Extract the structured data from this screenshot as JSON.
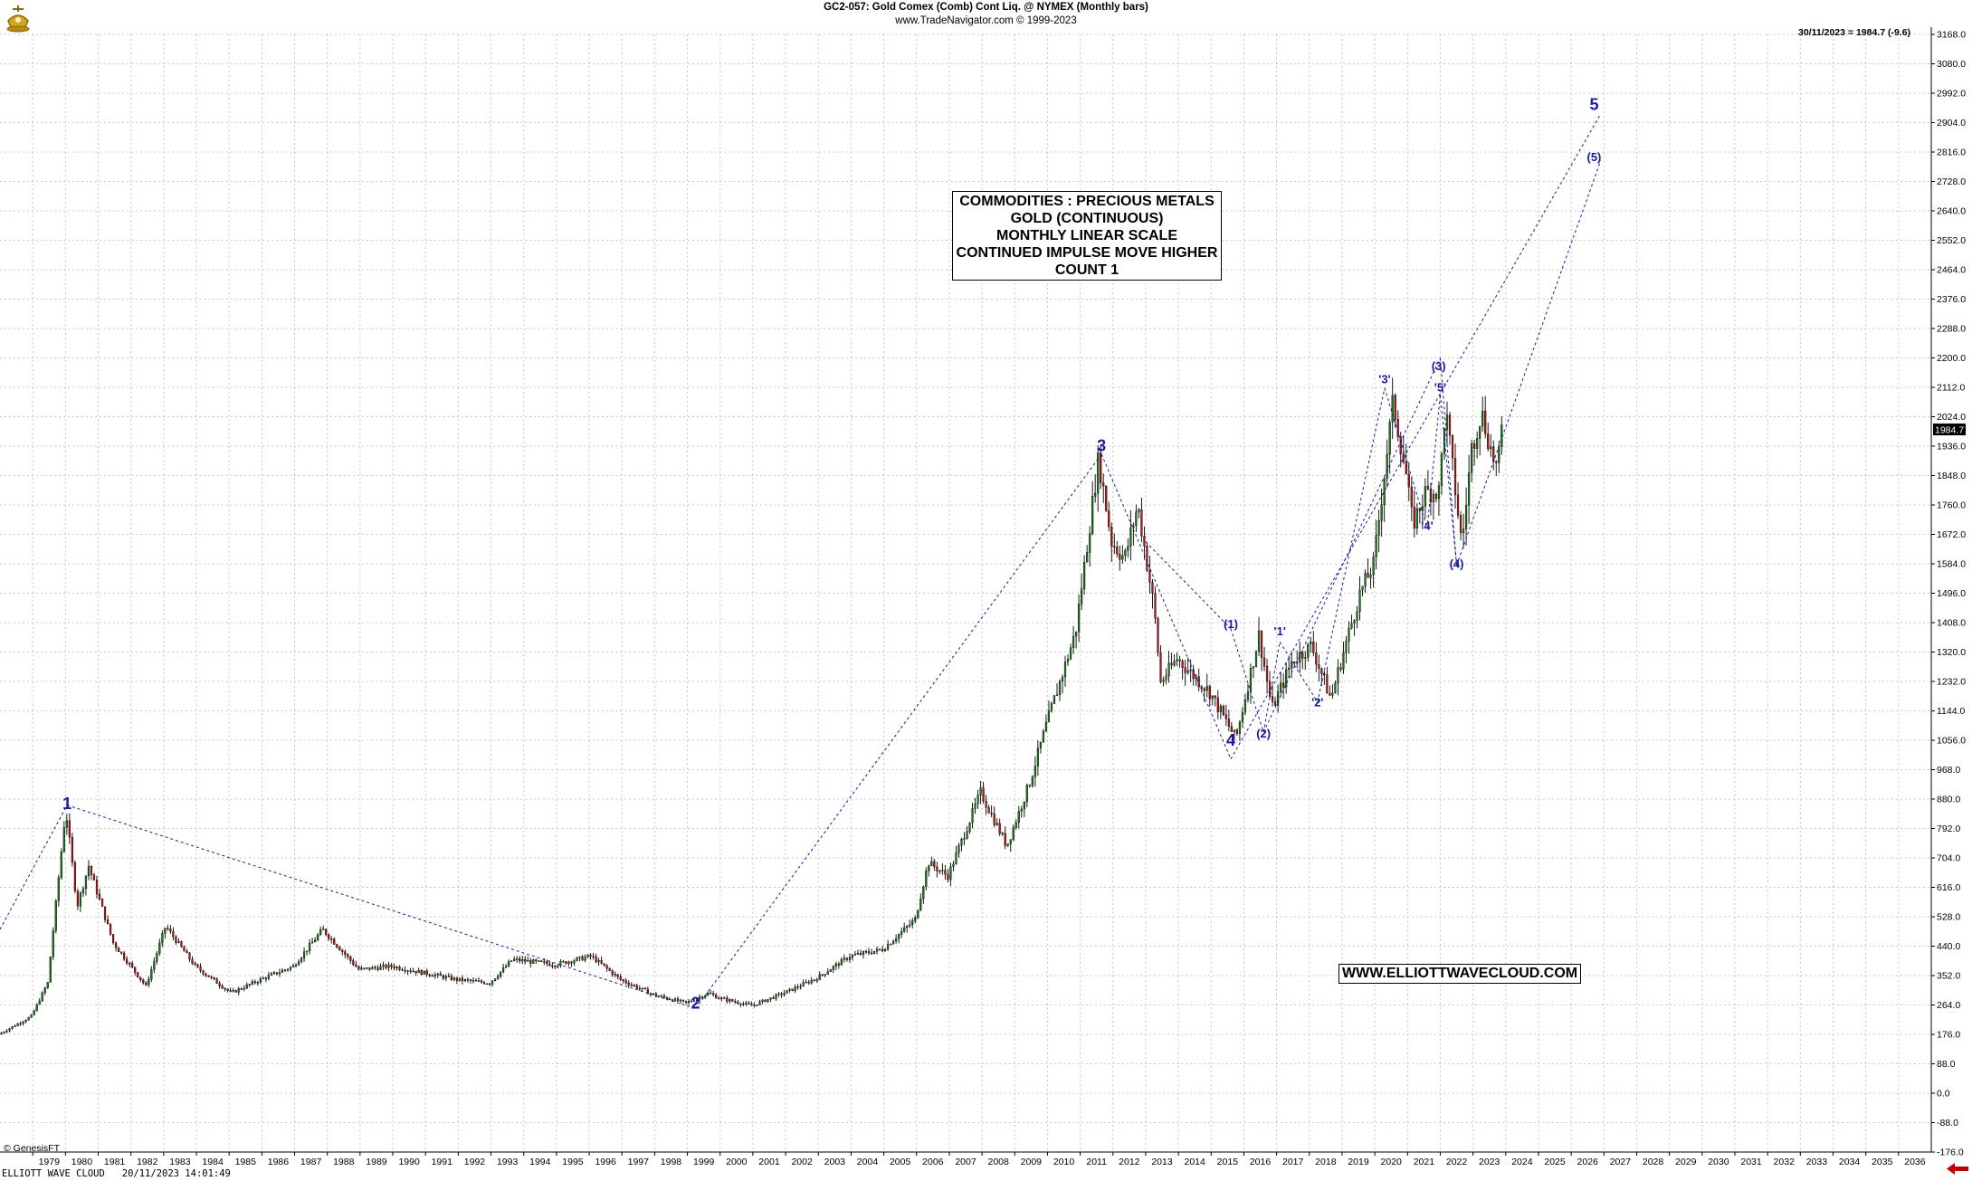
{
  "header": {
    "title": "GC2-057:  Gold Comex (Comb) Cont Liq. @ NYMEX  (Monthly bars)",
    "source": "www.TradeNavigator.com © 1999-2023",
    "last_info": "30/11/2023 = 1984.7 (-9.6)"
  },
  "info_box": {
    "lines": [
      "COMMODITIES : PRECIOUS METALS",
      "GOLD (CONTINUOUS)",
      "MONTHLY LINEAR SCALE",
      "CONTINUED IMPULSE MOVE HIGHER",
      "COUNT 1"
    ]
  },
  "url_box": "WWW.ELLIOTTWAVECLOUD.COM",
  "copyright": "© GenesisFT",
  "footer": {
    "app": "ELLIOTT WAVE CLOUD",
    "timestamp": "20/11/2023 14:01:49"
  },
  "colors": {
    "candle_up": "#1c7a1c",
    "candle_down": "#b81414",
    "wave_line": "#1a1a9c",
    "wave_label": "#1a1a9c",
    "grid": "#c8c8c8",
    "price_tag_bg": "#000000",
    "nav_arrow": "#c00000"
  },
  "chart_data": {
    "type": "candlestick",
    "title": "GC2-057:  Gold Comex (Comb) Cont Liq. @ NYMEX  (Monthly bars)",
    "xlabel": "",
    "ylabel": "",
    "scale": "linear",
    "grid": true,
    "xlim": [
      1978.0,
      2037.0
    ],
    "ylim": [
      -176.0,
      3168.0
    ],
    "x_ticks": [
      "1979",
      "1980",
      "1981",
      "1982",
      "1983",
      "1984",
      "1985",
      "1986",
      "1987",
      "1988",
      "1989",
      "1990",
      "1991",
      "1992",
      "1993",
      "1994",
      "1995",
      "1996",
      "1997",
      "1998",
      "1999",
      "2000",
      "2001",
      "2002",
      "2003",
      "2004",
      "2005",
      "2006",
      "2007",
      "2008",
      "2009",
      "2010",
      "2011",
      "2012",
      "2013",
      "2014",
      "2015",
      "2016",
      "2017",
      "2018",
      "2019",
      "2020",
      "2021",
      "2022",
      "2023",
      "2024",
      "2025",
      "2026",
      "2027",
      "2028",
      "2029",
      "2030",
      "2031",
      "2032",
      "2033",
      "2034",
      "2035",
      "2036"
    ],
    "y_ticks": [
      3168.0,
      3080.0,
      2992.0,
      2904.0,
      2816.0,
      2728.0,
      2640.0,
      2552.0,
      2464.0,
      2376.0,
      2288.0,
      2200.0,
      2112.0,
      2024.0,
      1936.0,
      1848.0,
      1760.0,
      1672.0,
      1584.0,
      1496.0,
      1408.0,
      1320.0,
      1232.0,
      1144.0,
      1056.0,
      968.0,
      880.0,
      792.0,
      704.0,
      616.0,
      528.0,
      440.0,
      352.0,
      264.0,
      176.0,
      88.0,
      0.0,
      -88.0,
      -176.0
    ],
    "last_price": 1984.7,
    "price_path": [
      [
        1978.0,
        176
      ],
      [
        1979.0,
        230
      ],
      [
        1979.5,
        330
      ],
      [
        1980.05,
        850
      ],
      [
        1980.4,
        560
      ],
      [
        1980.75,
        680
      ],
      [
        1981.5,
        450
      ],
      [
        1982.5,
        320
      ],
      [
        1983.1,
        500
      ],
      [
        1984.0,
        380
      ],
      [
        1985.1,
        300
      ],
      [
        1986.0,
        340
      ],
      [
        1987.0,
        380
      ],
      [
        1987.9,
        490
      ],
      [
        1989.0,
        370
      ],
      [
        1990.0,
        380
      ],
      [
        1991.0,
        360
      ],
      [
        1992.0,
        340
      ],
      [
        1993.0,
        330
      ],
      [
        1993.7,
        400
      ],
      [
        1995.0,
        385
      ],
      [
        1996.1,
        410
      ],
      [
        1997.0,
        340
      ],
      [
        1998.0,
        295
      ],
      [
        1999.0,
        270
      ],
      [
        1999.7,
        300
      ],
      [
        2000.0,
        285
      ],
      [
        2001.0,
        262
      ],
      [
        2002.0,
        300
      ],
      [
        2003.0,
        345
      ],
      [
        2004.0,
        410
      ],
      [
        2005.0,
        430
      ],
      [
        2006.0,
        520
      ],
      [
        2006.4,
        690
      ],
      [
        2007.0,
        650
      ],
      [
        2008.0,
        900
      ],
      [
        2008.8,
        740
      ],
      [
        2009.5,
        930
      ],
      [
        2010.0,
        1100
      ],
      [
        2010.9,
        1380
      ],
      [
        2011.6,
        1900
      ],
      [
        2012.0,
        1650
      ],
      [
        2012.4,
        1600
      ],
      [
        2012.8,
        1760
      ],
      [
        2013.3,
        1450
      ],
      [
        2013.5,
        1230
      ],
      [
        2014.0,
        1300
      ],
      [
        2014.5,
        1250
      ],
      [
        2015.0,
        1200
      ],
      [
        2015.8,
        1060
      ],
      [
        2016.5,
        1370
      ],
      [
        2016.9,
        1150
      ],
      [
        2017.5,
        1290
      ],
      [
        2018.1,
        1340
      ],
      [
        2018.7,
        1180
      ],
      [
        2019.0,
        1290
      ],
      [
        2019.6,
        1500
      ],
      [
        2020.0,
        1580
      ],
      [
        2020.6,
        2070
      ],
      [
        2021.0,
        1850
      ],
      [
        2021.2,
        1700
      ],
      [
        2021.6,
        1800
      ],
      [
        2022.0,
        1800
      ],
      [
        2022.2,
        2050
      ],
      [
        2022.7,
        1640
      ],
      [
        2023.0,
        1930
      ],
      [
        2023.3,
        2040
      ],
      [
        2023.6,
        1920
      ],
      [
        2023.8,
        1860
      ],
      [
        2023.9,
        1984.7
      ]
    ],
    "wave_labels": [
      {
        "text": "1",
        "x": 1980.05,
        "y": 850,
        "size": "large"
      },
      {
        "text": "2",
        "x": 1999.25,
        "y": 253,
        "size": "large"
      },
      {
        "text": "3",
        "x": 2011.65,
        "y": 1921,
        "size": "large"
      },
      {
        "text": "4",
        "x": 2015.6,
        "y": 1040,
        "size": "large"
      },
      {
        "text": "5",
        "x": 2026.7,
        "y": 2942,
        "size": "large"
      },
      {
        "text": "(1)",
        "x": 2015.6,
        "y": 1392,
        "size": "small"
      },
      {
        "text": "(2)",
        "x": 2016.6,
        "y": 1064,
        "size": "small"
      },
      {
        "text": "(3)",
        "x": 2021.95,
        "y": 2164,
        "size": "small"
      },
      {
        "text": "(4)",
        "x": 2022.5,
        "y": 1572,
        "size": "small"
      },
      {
        "text": "(5)",
        "x": 2026.7,
        "y": 2789,
        "size": "small"
      },
      {
        "text": "'1'",
        "x": 2017.1,
        "y": 1370,
        "size": "small"
      },
      {
        "text": "'2'",
        "x": 2018.25,
        "y": 1158,
        "size": "small"
      },
      {
        "text": "'3'",
        "x": 2020.3,
        "y": 2124,
        "size": "small"
      },
      {
        "text": "'4'",
        "x": 2021.6,
        "y": 1685,
        "size": "small"
      },
      {
        "text": "'5'",
        "x": 2022.0,
        "y": 2100,
        "size": "small"
      }
    ],
    "wave_lines": [
      [
        [
          1978.0,
          490
        ],
        [
          1980.05,
          862
        ]
      ],
      [
        [
          1980.05,
          862
        ],
        [
          1999.25,
          253
        ]
      ],
      [
        [
          1999.25,
          253
        ],
        [
          2011.65,
          1912
        ]
      ],
      [
        [
          2011.65,
          1912
        ],
        [
          2015.6,
          1000
        ]
      ],
      [
        [
          2015.6,
          1000
        ],
        [
          2026.9,
          2930
        ]
      ],
      [
        [
          2013.0,
          1650
        ],
        [
          2015.6,
          1390
        ]
      ],
      [
        [
          2015.6,
          1390
        ],
        [
          2016.6,
          1080
        ]
      ],
      [
        [
          2016.6,
          1080
        ],
        [
          2017.1,
          1350
        ]
      ],
      [
        [
          2017.1,
          1350
        ],
        [
          2018.25,
          1170
        ]
      ],
      [
        [
          2018.25,
          1170
        ],
        [
          2020.3,
          2110
        ]
      ],
      [
        [
          2020.3,
          2110
        ],
        [
          2021.6,
          1690
        ]
      ],
      [
        [
          2021.6,
          1690
        ],
        [
          2022.0,
          2090
        ]
      ],
      [
        [
          2022.0,
          2090
        ],
        [
          2022.5,
          1580
        ]
      ],
      [
        [
          2022.5,
          1580
        ],
        [
          2026.9,
          2790
        ]
      ],
      [
        [
          2016.6,
          1080
        ],
        [
          2022.0,
          2200
        ]
      ],
      [
        [
          2022.0,
          2200
        ],
        [
          2022.5,
          1580
        ]
      ]
    ]
  }
}
